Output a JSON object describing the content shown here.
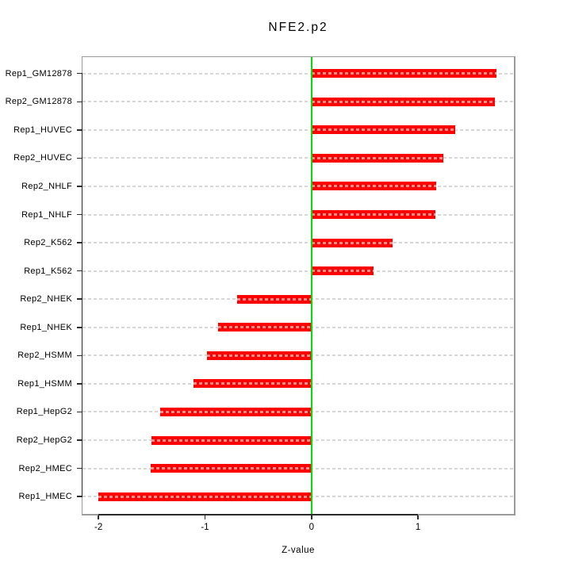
{
  "chart_data": {
    "type": "bar",
    "orientation": "horizontal",
    "title": "NFE2.p2",
    "xlabel": "Z-value",
    "ylabel": "",
    "categories": [
      "Rep1_GM12878",
      "Rep2_GM12878",
      "Rep1_HUVEC",
      "Rep2_HUVEC",
      "Rep2_NHLF",
      "Rep1_NHLF",
      "Rep2_K562",
      "Rep1_K562",
      "Rep2_NHEK",
      "Rep1_NHEK",
      "Rep2_HSMM",
      "Rep1_HSMM",
      "Rep1_HepG2",
      "Rep2_HepG2",
      "Rep2_HMEC",
      "Rep1_HMEC"
    ],
    "values": [
      1.74,
      1.72,
      1.35,
      1.24,
      1.17,
      1.16,
      0.76,
      0.58,
      -0.7,
      -0.88,
      -0.98,
      -1.11,
      -1.42,
      -1.5,
      -1.51,
      -2.0
    ],
    "xlim": [
      -2.15,
      1.9
    ],
    "xticks": [
      -2,
      -1,
      0,
      1
    ],
    "xtick_labels": [
      "-2",
      "-1",
      "0",
      "1"
    ],
    "legend": "none",
    "grid": "dashed-horizontal-per-category",
    "colors": {
      "bar": "#ff0000",
      "bar_hatch": "rgba(255,255,255,0.55)",
      "zero_line": "#00e000",
      "grid": "#d6d6d6",
      "frame": "#9a9a9a",
      "axis_line": "#2b2b2b",
      "text": "#000000",
      "background": "#ffffff"
    }
  }
}
